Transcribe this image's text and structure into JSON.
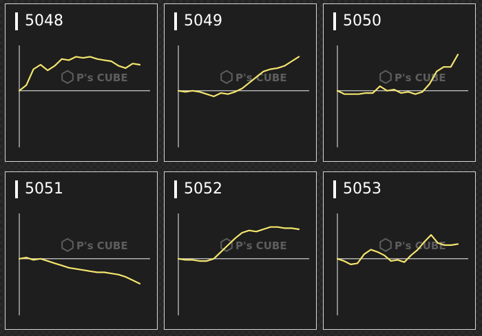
{
  "colors": {
    "line": "#f5e66e",
    "axis": "#cfcfcf",
    "panel_bg": "#1e1e1e",
    "panel_border": "#d8d8d8"
  },
  "watermark_text": "P's CUBE",
  "chart_data": [
    {
      "type": "line",
      "title": "5048",
      "grid": false,
      "ylim": [
        -50,
        40
      ],
      "values": [
        0,
        5,
        19,
        23,
        18,
        22,
        28,
        27,
        30,
        29,
        30,
        28,
        27,
        26,
        22,
        20,
        24,
        23
      ]
    },
    {
      "type": "line",
      "title": "5049",
      "grid": false,
      "ylim": [
        -50,
        40
      ],
      "values": [
        0,
        -1,
        0,
        -1,
        -3,
        -5,
        -2,
        -3,
        -1,
        2,
        7,
        12,
        17,
        19,
        20,
        22,
        26,
        30
      ]
    },
    {
      "type": "line",
      "title": "5050",
      "grid": false,
      "ylim": [
        -50,
        40
      ],
      "values": [
        0,
        -3,
        -3,
        -3,
        -2,
        -2,
        4,
        0,
        1,
        -2,
        -1,
        -3,
        -1,
        6,
        17,
        21,
        21,
        32
      ]
    },
    {
      "type": "line",
      "title": "5051",
      "grid": false,
      "ylim": [
        -50,
        40
      ],
      "values": [
        0,
        1,
        -1,
        0,
        -2,
        -4,
        -6,
        -8,
        -9,
        -10,
        -11,
        -12,
        -12,
        -13,
        -14,
        -16,
        -19,
        -22
      ]
    },
    {
      "type": "line",
      "title": "5052",
      "grid": false,
      "ylim": [
        -50,
        40
      ],
      "values": [
        0,
        -1,
        -1,
        -2,
        -2,
        0,
        6,
        12,
        18,
        23,
        25,
        24,
        26,
        28,
        28,
        27,
        27,
        26
      ]
    },
    {
      "type": "line",
      "title": "5053",
      "grid": false,
      "ylim": [
        -50,
        40
      ],
      "values": [
        0,
        -2,
        -5,
        -4,
        4,
        8,
        6,
        3,
        -2,
        -1,
        -3,
        3,
        8,
        15,
        21,
        14,
        12,
        12,
        13
      ]
    }
  ]
}
